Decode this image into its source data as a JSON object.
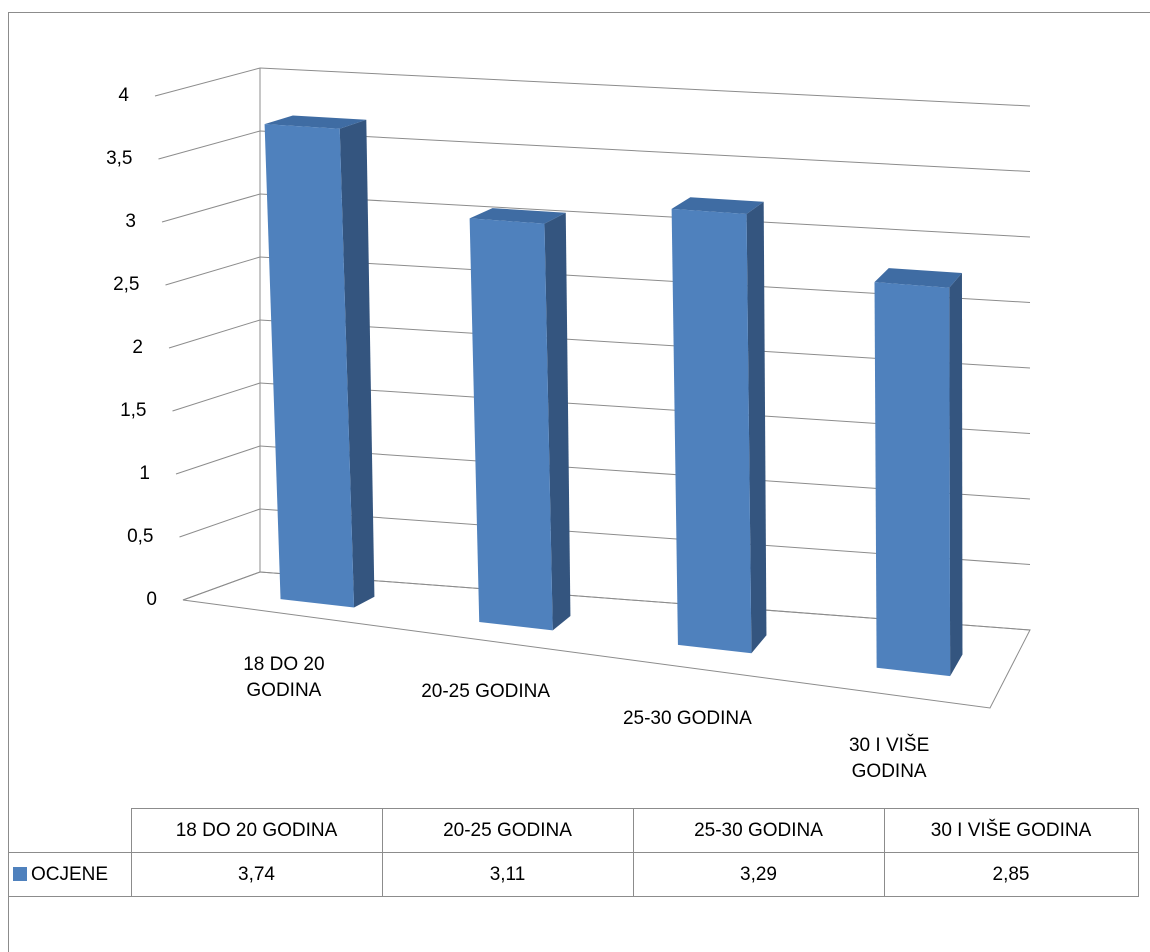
{
  "chart_data": {
    "type": "bar3d",
    "categories": [
      "18 DO 20 GODINA",
      "20-25 GODINA",
      "25-30 GODINA",
      "30 I VIŠE GODINA"
    ],
    "series": [
      {
        "name": "OCJENE",
        "color": "#4f81bd",
        "values": [
          3.74,
          3.11,
          3.29,
          2.85
        ],
        "value_labels": [
          "3,74",
          "3,11",
          "3,29",
          "2,85"
        ]
      }
    ],
    "ylim": [
      0,
      4
    ],
    "yticks": [
      0,
      {
        "value": 0.5,
        "label": "0,5"
      },
      1,
      {
        "value": 1.5,
        "label": "1,5"
      },
      2,
      {
        "value": 2.5,
        "label": "2,5"
      },
      3,
      {
        "value": 3.5,
        "label": "3,5"
      },
      4
    ],
    "grid": true
  }
}
